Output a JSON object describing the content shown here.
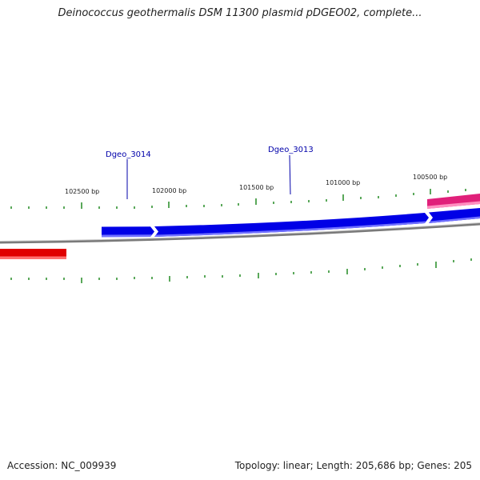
{
  "title": "Deinococcus geothermalis DSM 11300 plasmid pDGEO02, complete...",
  "accession": "Accession: NC_009939",
  "summary": "Topology: linear; Length: 205,686 bp; Genes: 205",
  "colors": {
    "backbone": "#7a7a7a",
    "ticks": "#228b22",
    "forward_gene": "#0000e6",
    "reverse_gene": "#e00000",
    "other_gene": "#e0207a",
    "gene_label": "#0000aa"
  },
  "bp_labels": [
    {
      "text": "102500 bp"
    },
    {
      "text": "102000 bp"
    },
    {
      "text": "101500 bp"
    },
    {
      "text": "101000 bp"
    },
    {
      "text": "100500 bp"
    }
  ],
  "gene_labels": [
    {
      "text": "Dgeo_3014"
    },
    {
      "text": "Dgeo_3013"
    }
  ]
}
